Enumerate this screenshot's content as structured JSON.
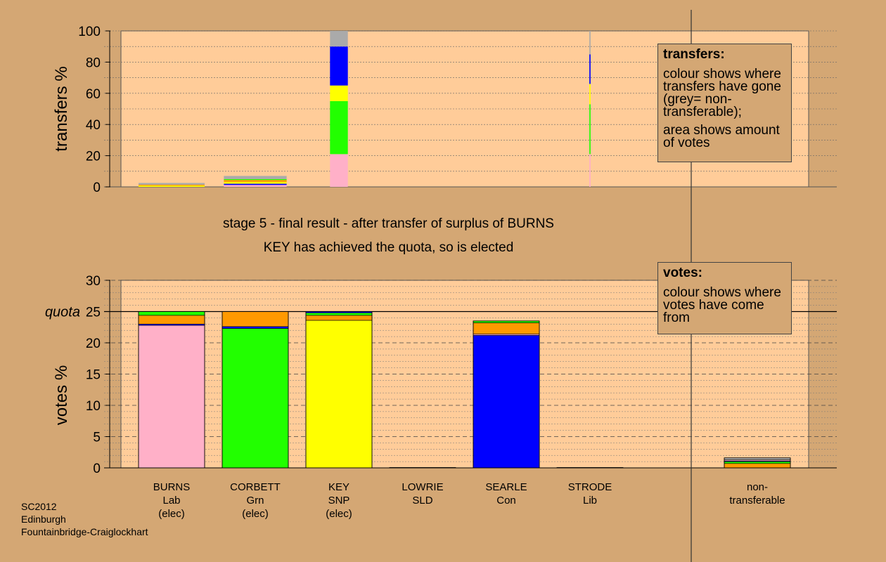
{
  "captions": {
    "line1": "stage 5 - final result - after transfer of surplus of BURNS",
    "line2": "KEY has achieved the quota, so is elected"
  },
  "transfers_key": {
    "title": "transfers:",
    "para1": "colour shows where transfers have gone (grey= non-transferable);",
    "para2": "area shows amount of votes"
  },
  "votes_key": {
    "title": "votes:",
    "para1": "colour shows where votes have come from"
  },
  "footer": {
    "line1": "SC2012",
    "line2": "Edinburgh",
    "line3": "Fountainbridge-Craiglockhart"
  },
  "colors": {
    "background": "#d4a774",
    "plot_bg": "#ffcc99",
    "Lab": "#ffb0c8",
    "Grn": "#22ff00",
    "SNP": "#ffff00",
    "SLD": "#ff9900",
    "Con": "#0000ff",
    "Lib": "#ff9900",
    "nontransferable": "#aaaaaa"
  },
  "chart_data": [
    {
      "type": "bar",
      "ylabel": "transfers %",
      "ylim": [
        0,
        100
      ],
      "yticks": [
        0,
        20,
        40,
        60,
        80,
        100
      ],
      "grid": true,
      "categories": [
        "BURNS",
        "CORBETT",
        "KEY",
        "LOWRIE",
        "SEARLE",
        "STRODE",
        "non-transferable"
      ],
      "relative_width": [
        1.0,
        0.95,
        0.27,
        0,
        0,
        0.018,
        0
      ],
      "stacks": [
        [
          {
            "party": "SNP",
            "value": 0.8
          },
          {
            "party": "SLD",
            "value": 0.6
          },
          {
            "party": "nontransferable",
            "value": 1.1
          }
        ],
        [
          {
            "party": "Lab",
            "value": 1.2
          },
          {
            "party": "Con",
            "value": 0.8
          },
          {
            "party": "SNP",
            "value": 1.2
          },
          {
            "party": "SLD",
            "value": 1.2
          },
          {
            "party": "Grn",
            "value": 0.6
          },
          {
            "party": "nontransferable",
            "value": 2.0
          }
        ],
        [
          {
            "party": "Lab",
            "value": 21
          },
          {
            "party": "Grn",
            "value": 34
          },
          {
            "party": "SNP",
            "value": 10
          },
          {
            "party": "Con",
            "value": 25
          },
          {
            "party": "nontransferable",
            "value": 10
          }
        ],
        [],
        [],
        [
          {
            "party": "Lab",
            "value": 21
          },
          {
            "party": "Grn",
            "value": 32
          },
          {
            "party": "SNP",
            "value": 13
          },
          {
            "party": "Con",
            "value": 19
          },
          {
            "party": "nontransferable",
            "value": 15
          }
        ],
        []
      ]
    },
    {
      "type": "bar",
      "ylabel": "votes %",
      "ylim": [
        0,
        30
      ],
      "yticks": [
        0,
        5,
        10,
        15,
        20,
        25,
        30
      ],
      "quota": 25,
      "quota_label": "quota",
      "grid": true,
      "categories": [
        {
          "name": "BURNS",
          "party": "Lab",
          "note": "(elec)"
        },
        {
          "name": "CORBETT",
          "party": "Grn",
          "note": "(elec)"
        },
        {
          "name": "KEY",
          "party": "SNP",
          "note": "(elec)"
        },
        {
          "name": "LOWRIE",
          "party": "SLD",
          "note": ""
        },
        {
          "name": "SEARLE",
          "party": "Con",
          "note": ""
        },
        {
          "name": "STRODE",
          "party": "Lib",
          "note": ""
        },
        {
          "name": "non-",
          "party": "transferable",
          "note": ""
        }
      ],
      "stacks": [
        [
          {
            "party": "Lab",
            "value": 22.8
          },
          {
            "party": "Con",
            "value": 0.2
          },
          {
            "party": "SLD",
            "value": 1.4
          },
          {
            "party": "Grn",
            "value": 0.6
          }
        ],
        [
          {
            "party": "Grn",
            "value": 22.3
          },
          {
            "party": "Con",
            "value": 0.3
          },
          {
            "party": "SLD",
            "value": 2.4
          }
        ],
        [
          {
            "party": "SNP",
            "value": 23.6
          },
          {
            "party": "SLD",
            "value": 0.8
          },
          {
            "party": "Grn",
            "value": 0.4
          },
          {
            "party": "Con",
            "value": 0.2
          }
        ],
        [
          {
            "party": "SLD",
            "value": 0.05
          }
        ],
        [
          {
            "party": "Con",
            "value": 21.2
          },
          {
            "party": "Lab",
            "value": 0.2
          },
          {
            "party": "SLD",
            "value": 1.8
          },
          {
            "party": "Grn",
            "value": 0.3
          }
        ],
        [
          {
            "party": "Lib",
            "value": 0.05
          }
        ],
        [
          {
            "party": "SLD",
            "value": 0.7
          },
          {
            "party": "Grn",
            "value": 0.3
          },
          {
            "party": "Con",
            "value": 0.1
          },
          {
            "party": "Lab",
            "value": 0.2
          },
          {
            "party": "nontransferable",
            "value": 0.3
          }
        ]
      ]
    }
  ]
}
